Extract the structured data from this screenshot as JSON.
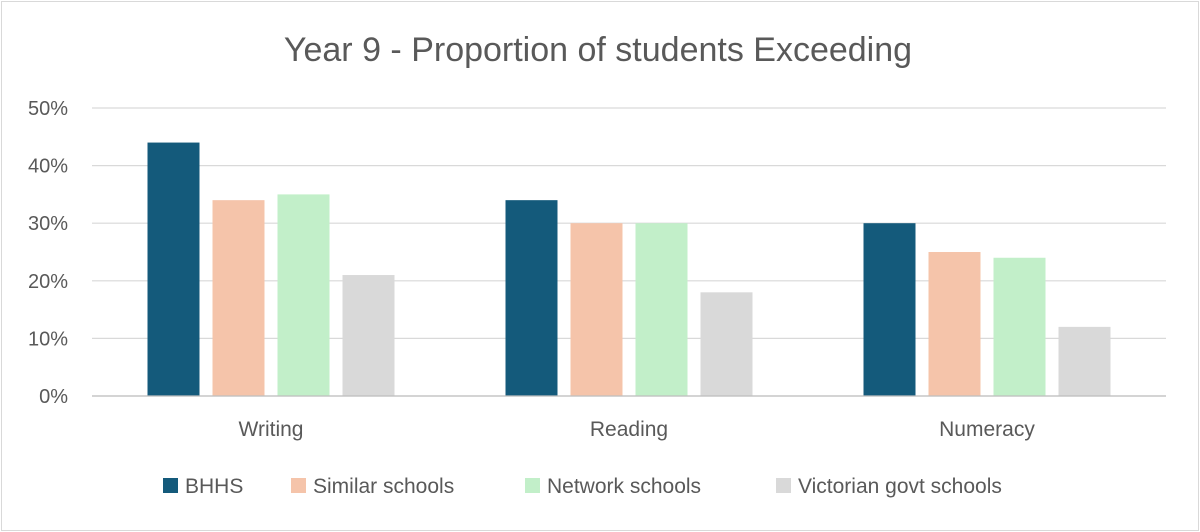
{
  "chart_data": {
    "type": "bar",
    "title": "Year 9 - Proportion of students Exceeding",
    "xlabel": "",
    "ylabel": "",
    "categories": [
      "Writing",
      "Reading",
      "Numeracy"
    ],
    "series": [
      {
        "name": "BHHS",
        "color": "#145a7b",
        "values": [
          44,
          34,
          30
        ]
      },
      {
        "name": "Similar schools",
        "color": "#f5c4aa",
        "values": [
          34,
          30,
          25
        ]
      },
      {
        "name": "Network schools",
        "color": "#c2efc9",
        "values": [
          35,
          30,
          24
        ]
      },
      {
        "name": "Victorian govt schools",
        "color": "#d9d9d9",
        "values": [
          21,
          18,
          12
        ]
      }
    ],
    "ylim": [
      0,
      50
    ],
    "yticks": [
      "0%",
      "10%",
      "20%",
      "30%",
      "40%",
      "50%"
    ],
    "grid": true,
    "legend": "bottom"
  }
}
